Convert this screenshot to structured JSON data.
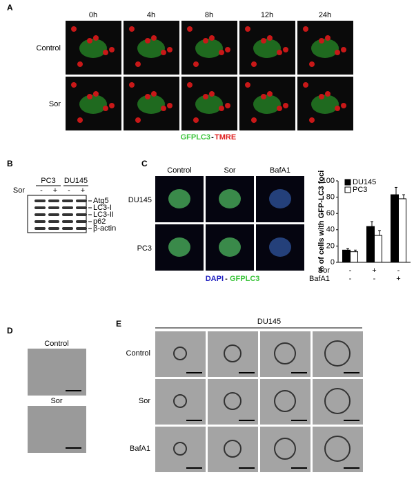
{
  "panel_a": {
    "label": "A",
    "columns": [
      "0h",
      "4h",
      "8h",
      "12h",
      "24h"
    ],
    "rows": [
      "Control",
      "Sor"
    ],
    "legend": {
      "green": "GFPLC3",
      "separator": "-",
      "red": "TMRE"
    }
  },
  "panel_b": {
    "label": "B",
    "cell_lines": [
      "PC3",
      "DU145"
    ],
    "treatment_label": "Sor",
    "treatment_signs": [
      "-",
      "+",
      "-",
      "+"
    ],
    "bands": [
      "Atg5",
      "LC3-I",
      "LC3-II",
      "p62",
      "β-actin"
    ]
  },
  "panel_c": {
    "label": "C",
    "columns": [
      "Control",
      "Sor",
      "BafA1"
    ],
    "rows": [
      "DU145",
      "PC3"
    ],
    "legend": {
      "blue": "DAPI",
      "separator": "-",
      "green": "GFPLC3"
    },
    "chart_data": {
      "type": "bar",
      "ylabel": "% of cells with GFP-LC3 foci",
      "categories": [
        null,
        null,
        null
      ],
      "series": [
        {
          "name": "DU145",
          "color": "#000000",
          "values": [
            15,
            44,
            83
          ],
          "errors": [
            2,
            6,
            9
          ]
        },
        {
          "name": "PC3",
          "color": "#ffffff",
          "values": [
            13,
            33,
            78
          ],
          "errors": [
            2,
            6,
            5
          ]
        }
      ],
      "treatments": [
        {
          "name": "Sor",
          "signs": [
            "-",
            "+",
            "-"
          ]
        },
        {
          "name": "BafA1",
          "signs": [
            "-",
            "-",
            "+"
          ]
        }
      ],
      "ylim": [
        0,
        100
      ],
      "yticks": [
        0,
        20,
        40,
        60,
        80,
        100
      ],
      "legend": "top-left"
    }
  },
  "panel_d": {
    "label": "D",
    "rows": [
      "Control",
      "Sor"
    ]
  },
  "panel_e": {
    "label": "E",
    "title": "DU145",
    "rows": [
      "Control",
      "Sor",
      "BafA1"
    ]
  }
}
